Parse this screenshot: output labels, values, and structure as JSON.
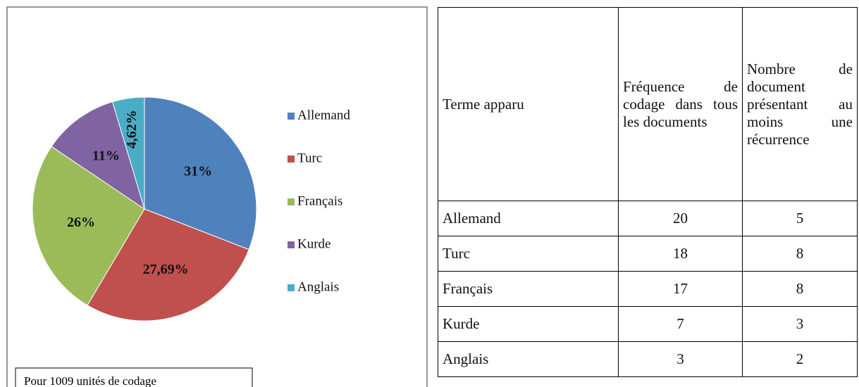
{
  "chart_data": {
    "type": "pie",
    "categories": [
      "Allemand",
      "Turc",
      "Français",
      "Kurde",
      "Anglais"
    ],
    "values": [
      31,
      27.69,
      26,
      11,
      4.62
    ],
    "value_labels": [
      "31%",
      "27,69%",
      "26%",
      "11%",
      "4,62%"
    ],
    "colors": [
      "#4f81bd",
      "#c0504d",
      "#9bbb59",
      "#8064a2",
      "#4bacc6"
    ],
    "legend": "right",
    "note": "Pour 1009 unités de codage"
  },
  "table": {
    "headers": [
      "Terme apparu",
      "Fréquence de codage dans tous les documents",
      "Nombre de document présentant au moins une récurrence"
    ],
    "rows": [
      [
        "Allemand",
        20,
        5
      ],
      [
        "Turc",
        18,
        8
      ],
      [
        "Français",
        17,
        8
      ],
      [
        "Kurde",
        7,
        3
      ],
      [
        "Anglais",
        3,
        2
      ]
    ]
  }
}
